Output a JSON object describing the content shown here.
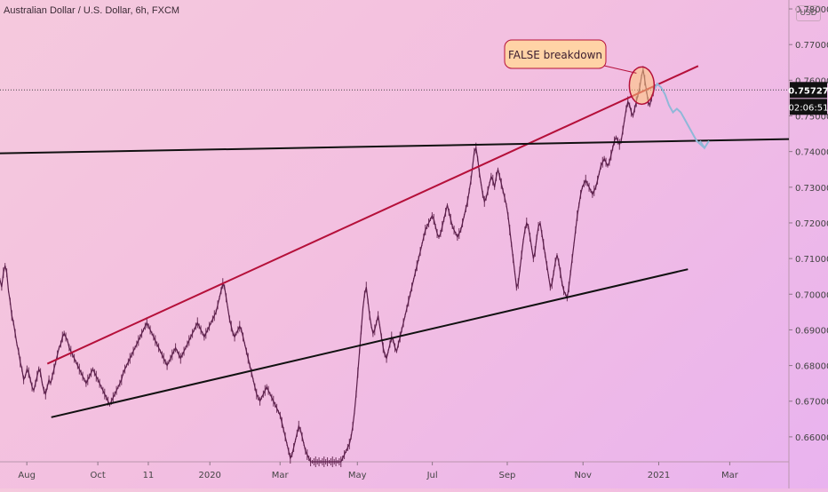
{
  "chart_data": {
    "type": "line",
    "title": "Australian Dollar / U.S. Dollar, 6h, FXCM",
    "y_unit": "USD",
    "ylim": [
      0.653,
      0.7825
    ],
    "y_ticks": [
      "0.78000",
      "0.77000",
      "0.76000",
      "0.75000",
      "0.74000",
      "0.73000",
      "0.72000",
      "0.71000",
      "0.70000",
      "0.69000",
      "0.68000",
      "0.67000",
      "0.66000"
    ],
    "x_ticks": [
      "Aug",
      "Oct",
      "11",
      "2020",
      "Mar",
      "May",
      "Jul",
      "Sep",
      "Nov",
      "2021",
      "Mar"
    ],
    "current_price": "0.75727",
    "countdown": "02:06:51",
    "annotation": "FALSE breakdown",
    "price_series": [
      0.704,
      0.702,
      0.706,
      0.708,
      0.706,
      0.701,
      0.698,
      0.694,
      0.692,
      0.689,
      0.686,
      0.684,
      0.681,
      0.679,
      0.676,
      0.677,
      0.679,
      0.678,
      0.676,
      0.674,
      0.673,
      0.675,
      0.677,
      0.679,
      0.678,
      0.675,
      0.673,
      0.672,
      0.674,
      0.676,
      0.675,
      0.677,
      0.679,
      0.681,
      0.683,
      0.685,
      0.686,
      0.688,
      0.689,
      0.688,
      0.687,
      0.685,
      0.684,
      0.683,
      0.682,
      0.681,
      0.68,
      0.679,
      0.678,
      0.677,
      0.676,
      0.675,
      0.676,
      0.677,
      0.678,
      0.679,
      0.678,
      0.677,
      0.676,
      0.675,
      0.674,
      0.673,
      0.672,
      0.671,
      0.67,
      0.669,
      0.67,
      0.671,
      0.672,
      0.673,
      0.674,
      0.675,
      0.676,
      0.678,
      0.679,
      0.68,
      0.681,
      0.682,
      0.683,
      0.684,
      0.685,
      0.686,
      0.687,
      0.688,
      0.689,
      0.69,
      0.691,
      0.692,
      0.691,
      0.69,
      0.689,
      0.688,
      0.687,
      0.686,
      0.685,
      0.684,
      0.683,
      0.682,
      0.681,
      0.68,
      0.681,
      0.682,
      0.683,
      0.684,
      0.685,
      0.684,
      0.683,
      0.682,
      0.683,
      0.684,
      0.685,
      0.686,
      0.687,
      0.688,
      0.689,
      0.69,
      0.691,
      0.692,
      0.691,
      0.69,
      0.689,
      0.688,
      0.689,
      0.69,
      0.691,
      0.692,
      0.693,
      0.694,
      0.695,
      0.697,
      0.699,
      0.701,
      0.703,
      0.702,
      0.699,
      0.696,
      0.693,
      0.691,
      0.689,
      0.688,
      0.689,
      0.69,
      0.691,
      0.69,
      0.688,
      0.686,
      0.684,
      0.682,
      0.68,
      0.678,
      0.676,
      0.674,
      0.672,
      0.671,
      0.67,
      0.671,
      0.672,
      0.673,
      0.674,
      0.673,
      0.672,
      0.671,
      0.67,
      0.669,
      0.668,
      0.667,
      0.666,
      0.664,
      0.662,
      0.66,
      0.658,
      0.656,
      0.654,
      0.655,
      0.657,
      0.659,
      0.661,
      0.663,
      0.662,
      0.66,
      0.658,
      0.656,
      0.655,
      0.654,
      0.653,
      0.653,
      0.653,
      0.653,
      0.653,
      0.653,
      0.653,
      0.653,
      0.653,
      0.653,
      0.653,
      0.653,
      0.653,
      0.653,
      0.653,
      0.653,
      0.653,
      0.653,
      0.653,
      0.654,
      0.655,
      0.656,
      0.657,
      0.658,
      0.66,
      0.663,
      0.667,
      0.672,
      0.678,
      0.684,
      0.69,
      0.696,
      0.7,
      0.702,
      0.698,
      0.694,
      0.691,
      0.689,
      0.69,
      0.692,
      0.694,
      0.691,
      0.688,
      0.685,
      0.683,
      0.682,
      0.684,
      0.686,
      0.688,
      0.687,
      0.685,
      0.684,
      0.686,
      0.688,
      0.69,
      0.692,
      0.694,
      0.696,
      0.698,
      0.7,
      0.702,
      0.704,
      0.706,
      0.708,
      0.71,
      0.712,
      0.714,
      0.716,
      0.718,
      0.719,
      0.72,
      0.721,
      0.722,
      0.721,
      0.719,
      0.717,
      0.716,
      0.717,
      0.719,
      0.721,
      0.723,
      0.725,
      0.723,
      0.721,
      0.719,
      0.718,
      0.717,
      0.716,
      0.717,
      0.718,
      0.72,
      0.722,
      0.724,
      0.726,
      0.729,
      0.732,
      0.736,
      0.74,
      0.741,
      0.738,
      0.734,
      0.731,
      0.728,
      0.726,
      0.727,
      0.729,
      0.731,
      0.733,
      0.732,
      0.73,
      0.733,
      0.735,
      0.733,
      0.731,
      0.729,
      0.727,
      0.725,
      0.722,
      0.718,
      0.714,
      0.71,
      0.706,
      0.702,
      0.703,
      0.707,
      0.711,
      0.715,
      0.718,
      0.72,
      0.719,
      0.716,
      0.713,
      0.71,
      0.712,
      0.716,
      0.719,
      0.72,
      0.717,
      0.714,
      0.711,
      0.708,
      0.705,
      0.702,
      0.703,
      0.706,
      0.709,
      0.711,
      0.709,
      0.706,
      0.703,
      0.701,
      0.7,
      0.699,
      0.702,
      0.706,
      0.71,
      0.714,
      0.718,
      0.722,
      0.725,
      0.728,
      0.73,
      0.731,
      0.732,
      0.731,
      0.73,
      0.729,
      0.728,
      0.729,
      0.73,
      0.732,
      0.734,
      0.736,
      0.737,
      0.738,
      0.737,
      0.736,
      0.737,
      0.739,
      0.741,
      0.743,
      0.744,
      0.743,
      0.742,
      0.743,
      0.746,
      0.749,
      0.752,
      0.754,
      0.753,
      0.751,
      0.75,
      0.752,
      0.754,
      0.756,
      0.758,
      0.761,
      0.763,
      0.76,
      0.757,
      0.754,
      0.753,
      0.755,
      0.757
    ],
    "projection": [
      0.757,
      0.759,
      0.758,
      0.756,
      0.753,
      0.751,
      0.752,
      0.751,
      0.749,
      0.747,
      0.745,
      0.743,
      0.742,
      0.741
    ],
    "trendlines": [
      {
        "from": [
          0.06,
          0.6805
        ],
        "to": [
          0.885,
          0.764
        ]
      },
      {
        "from": [
          0.0,
          0.7395
        ],
        "to": [
          1.0,
          0.7435
        ]
      },
      {
        "from": [
          0.065,
          0.6655
        ],
        "to": [
          0.872,
          0.707
        ]
      }
    ]
  }
}
